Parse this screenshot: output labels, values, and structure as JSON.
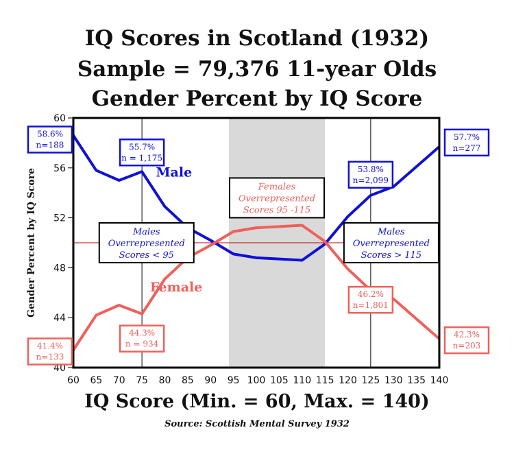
{
  "title_lines": [
    "IQ Scores in Scotland (1932)",
    "Sample = 79,376 11-year Olds",
    "Gender Percent  by IQ Score"
  ],
  "source": "Source: Scottish Mental Survey 1932",
  "colors": {
    "male": "#1010d8",
    "female": "#f0605a",
    "shade": "#d9d9d9",
    "refline": "#c00000"
  },
  "chart_data": {
    "type": "line",
    "xlabel": "IQ Score (Min. = 60, Max. = 140)",
    "ylabel": "Gender Percent by IQ Score",
    "xlim": [
      60,
      140
    ],
    "ylim": [
      40,
      60
    ],
    "xticks": [
      60,
      65,
      70,
      75,
      80,
      85,
      90,
      95,
      100,
      105,
      110,
      115,
      120,
      125,
      130,
      135,
      140
    ],
    "yticks": [
      40,
      44,
      48,
      52,
      56,
      60
    ],
    "reference_line_y": 50,
    "shaded_x_range": [
      94,
      115
    ],
    "vertical_markers_x": [
      75,
      125
    ],
    "series": [
      {
        "name": "Male",
        "x": [
          60,
          65,
          70,
          75,
          80,
          85,
          90,
          95,
          100,
          105,
          110,
          115,
          120,
          125,
          130,
          140
        ],
        "values": [
          58.6,
          55.8,
          55.0,
          55.7,
          52.9,
          51.2,
          50.2,
          49.1,
          48.8,
          48.7,
          48.6,
          49.9,
          52.1,
          53.8,
          54.5,
          57.7
        ]
      },
      {
        "name": "Female",
        "x": [
          60,
          65,
          70,
          75,
          80,
          85,
          90,
          95,
          100,
          105,
          110,
          115,
          120,
          125,
          130,
          140
        ],
        "values": [
          41.4,
          44.2,
          45.0,
          44.3,
          47.1,
          48.8,
          49.8,
          50.9,
          51.2,
          51.3,
          51.4,
          50.1,
          47.9,
          46.2,
          45.5,
          42.3
        ]
      }
    ],
    "series_labels": [
      {
        "text": "Male",
        "x": 82,
        "y": 55.3,
        "series": 0
      },
      {
        "text": "Female",
        "x": 82.5,
        "y": 46.1,
        "series": 1
      }
    ],
    "annotations": [
      {
        "lines": [
          "58.6%",
          "n=188"
        ],
        "x": 60,
        "y": 58.6,
        "series": 0
      },
      {
        "lines": [
          "55.7%",
          "n = 1,175"
        ],
        "x": 75,
        "y": 55.7,
        "series": 0
      },
      {
        "lines": [
          "53.8%",
          "n=2,099"
        ],
        "x": 125,
        "y": 53.8,
        "series": 0
      },
      {
        "lines": [
          "57.7%",
          "n=277"
        ],
        "x": 140,
        "y": 57.7,
        "series": 0
      },
      {
        "lines": [
          "41.4%",
          "n=133"
        ],
        "x": 60,
        "y": 41.4,
        "series": 1
      },
      {
        "lines": [
          "44.3%",
          "n = 934"
        ],
        "x": 75,
        "y": 44.3,
        "series": 1
      },
      {
        "lines": [
          "46.2%",
          "n=1,801"
        ],
        "x": 125,
        "y": 46.2,
        "series": 1
      },
      {
        "lines": [
          "42.3%",
          "n=203"
        ],
        "x": 140,
        "y": 42.3,
        "series": 1
      }
    ],
    "callouts": [
      {
        "lines": [
          "Males",
          "Overrepresented",
          "Scores < 95"
        ],
        "x": 76,
        "y": 50,
        "color": "male"
      },
      {
        "lines": [
          "Females",
          "Overrepresented",
          "Scores 95 -115"
        ],
        "x": 104.5,
        "y": 53.6,
        "color": "female"
      },
      {
        "lines": [
          "Males",
          "Overrepresented",
          "Scores > 115"
        ],
        "x": 129.5,
        "y": 50,
        "color": "male"
      }
    ]
  }
}
